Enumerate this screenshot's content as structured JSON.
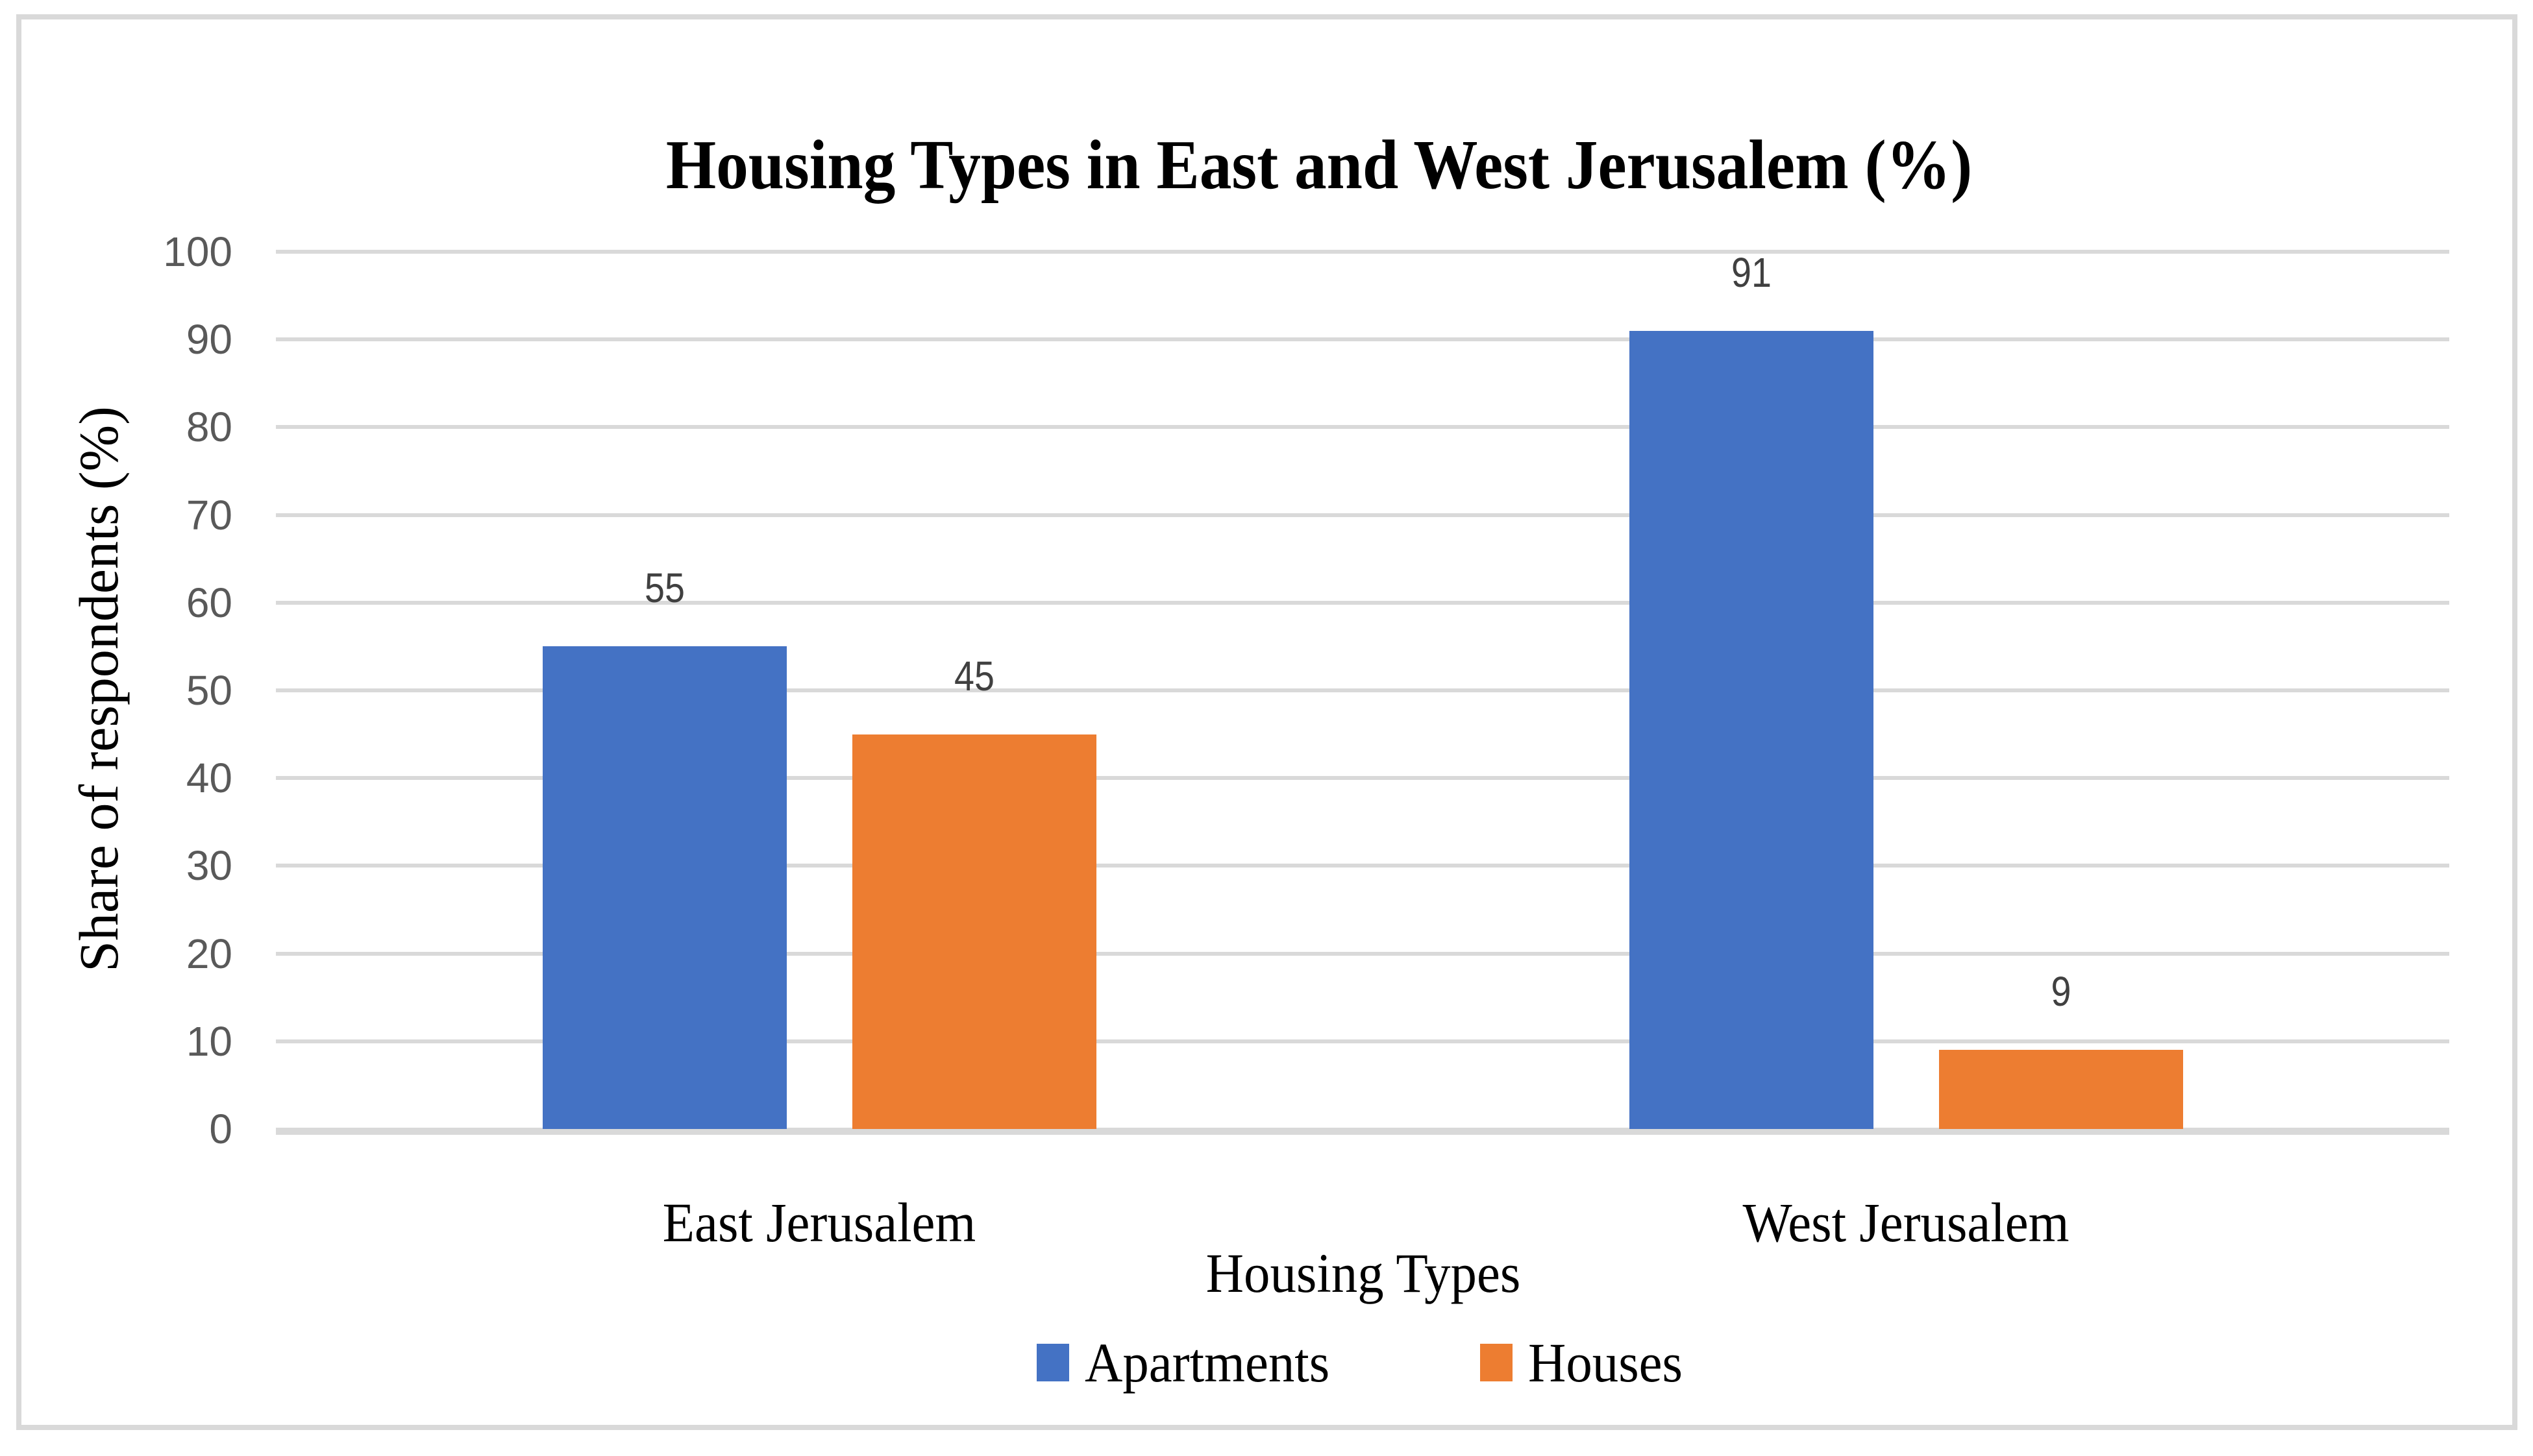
{
  "chart_data": {
    "type": "bar",
    "title": "Housing Types in East and West Jerusalem (%)",
    "xlabel": "Housing Types",
    "ylabel": "Share of respondents (%)",
    "categories": [
      "East Jerusalem",
      "West Jerusalem"
    ],
    "series": [
      {
        "name": "Apartments",
        "color": "#4472C4",
        "values": [
          55,
          91
        ]
      },
      {
        "name": "Houses",
        "color": "#ED7D31",
        "values": [
          45,
          9
        ]
      }
    ],
    "data_labels_shown": [
      [
        55,
        91
      ],
      [
        45,
        9
      ]
    ],
    "ylim": [
      0,
      100
    ],
    "ytick_step": 10,
    "yticks": [
      0,
      10,
      20,
      30,
      40,
      50,
      60,
      70,
      80,
      90,
      100
    ],
    "grid": true,
    "legend_position": "bottom",
    "colors": {
      "gridline": "#D9D9D9",
      "frame_border": "#D9D9D9",
      "tick_text": "#595959",
      "data_label_text": "#404040",
      "title_text": "#000000"
    }
  }
}
